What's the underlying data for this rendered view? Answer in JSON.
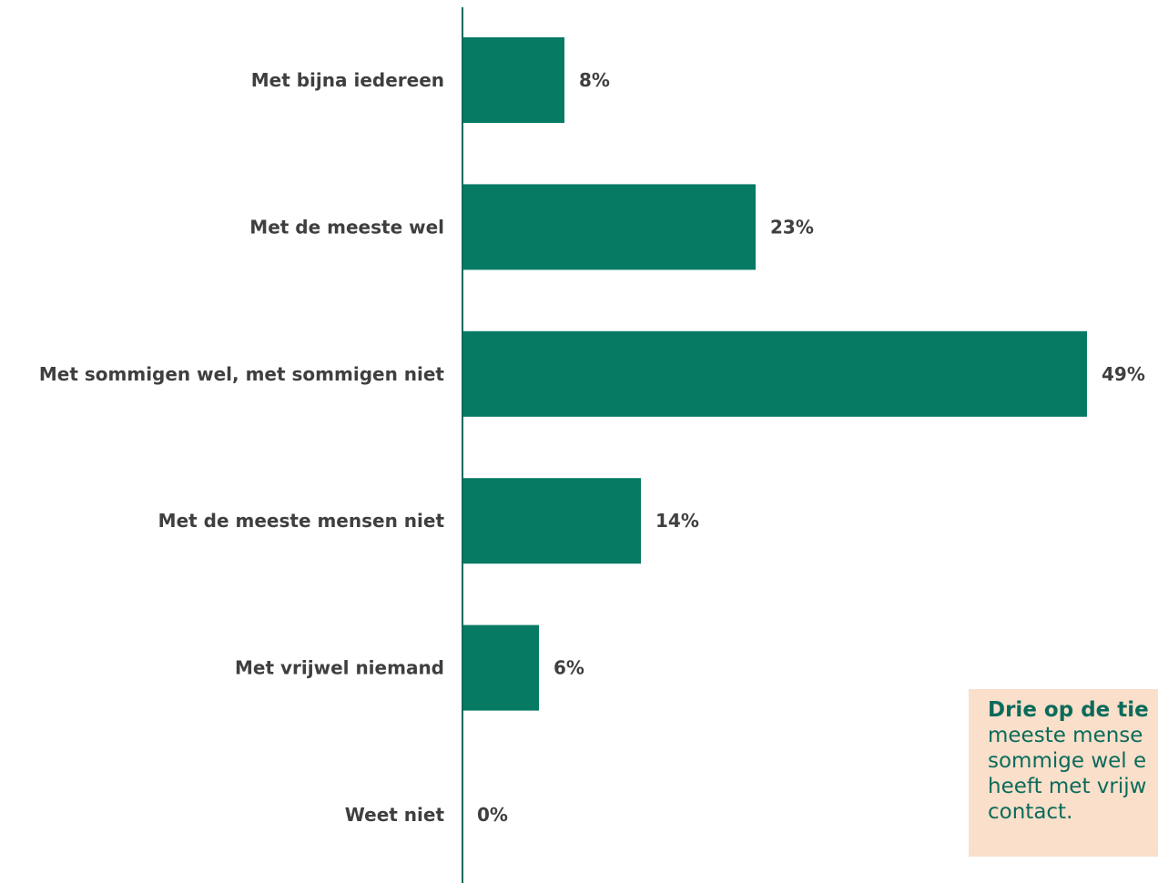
{
  "colors": {
    "bar": "#077a64",
    "axis": "#0b6b5b",
    "label_text": "#3f3f3f",
    "callout_bg": "#fadfca",
    "callout_text": "#0b6b5b"
  },
  "chart_data": {
    "type": "bar",
    "orientation": "horizontal",
    "categories": [
      "Met bijna iedereen",
      "Met de meeste wel",
      "Met sommigen wel, met sommigen niet",
      "Met de meeste mensen niet",
      "Met vrijwel niemand",
      "Weet niet"
    ],
    "values": [
      8,
      23,
      49,
      14,
      6,
      0
    ],
    "value_labels": [
      "8%",
      "23%",
      "49%",
      "14%",
      "6%",
      "0%"
    ],
    "xlim": [
      0,
      49
    ],
    "grid": false,
    "legend": "none"
  },
  "callout": {
    "lines": [
      "Drie op de tie",
      "meeste mense",
      "sommige wel e",
      "heeft met vrijw",
      "contact."
    ]
  }
}
